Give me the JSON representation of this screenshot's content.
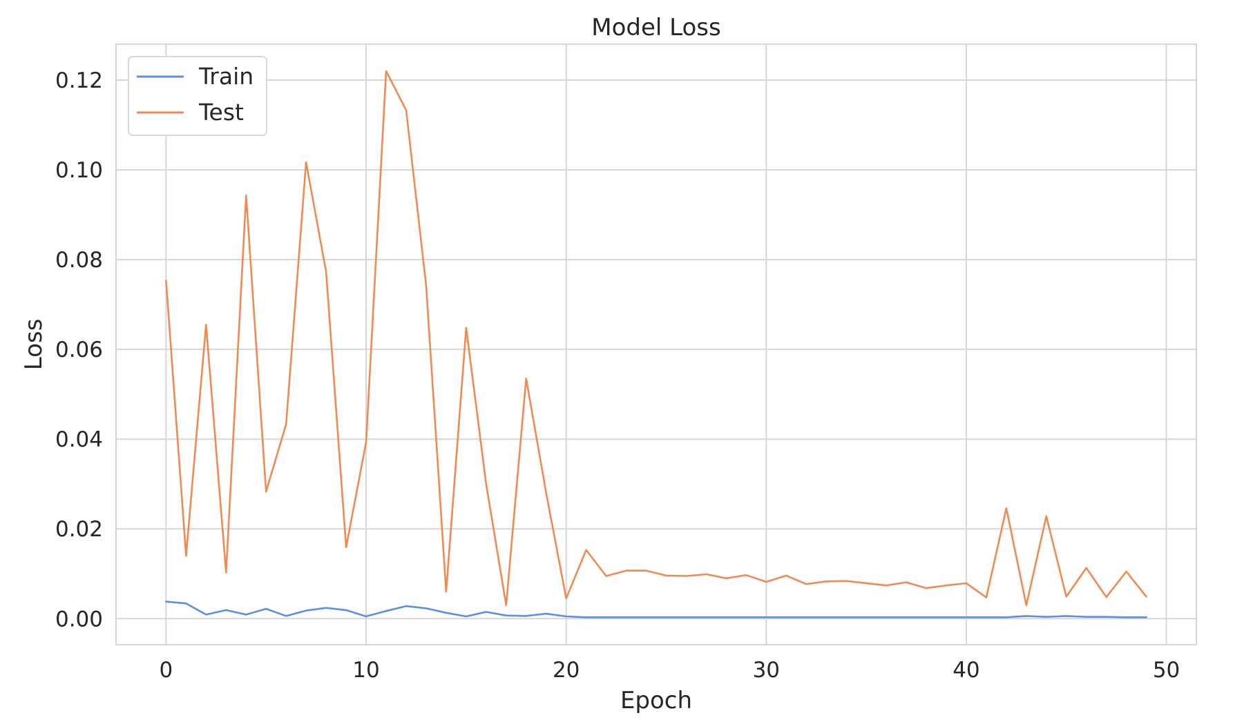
{
  "chart_data": {
    "type": "line",
    "title": "Model Loss",
    "xlabel": "Epoch",
    "ylabel": "Loss",
    "xlim": [
      -2.5,
      51.5
    ],
    "ylim": [
      -0.0058,
      0.128
    ],
    "xticks": [
      0,
      10,
      20,
      30,
      40,
      50
    ],
    "xtick_labels": [
      "0",
      "10",
      "20",
      "30",
      "40",
      "50"
    ],
    "yticks": [
      0.0,
      0.02,
      0.04,
      0.06,
      0.08,
      0.1,
      0.12
    ],
    "ytick_labels": [
      "0.00",
      "0.02",
      "0.04",
      "0.06",
      "0.08",
      "0.10",
      "0.12"
    ],
    "grid": true,
    "legend_position": "top-left",
    "x": [
      0,
      1,
      2,
      3,
      4,
      5,
      6,
      7,
      8,
      9,
      10,
      11,
      12,
      13,
      14,
      15,
      16,
      17,
      18,
      19,
      20,
      21,
      22,
      23,
      24,
      25,
      26,
      27,
      28,
      29,
      30,
      31,
      32,
      33,
      34,
      35,
      36,
      37,
      38,
      39,
      40,
      41,
      42,
      43,
      44,
      45,
      46,
      47,
      48,
      49
    ],
    "series": [
      {
        "name": "Train",
        "color": "#5b8ee5",
        "values": [
          0.0038,
          0.0034,
          0.0009,
          0.0019,
          0.0009,
          0.0022,
          0.0006,
          0.0018,
          0.0024,
          0.0019,
          0.0005,
          0.0017,
          0.0028,
          0.0023,
          0.0013,
          0.0005,
          0.0015,
          0.0007,
          0.0006,
          0.0011,
          0.0005,
          0.0003,
          0.0003,
          0.0003,
          0.0003,
          0.0003,
          0.0003,
          0.0003,
          0.0003,
          0.0003,
          0.0003,
          0.0003,
          0.0003,
          0.0003,
          0.0003,
          0.0003,
          0.0003,
          0.0003,
          0.0003,
          0.0003,
          0.0003,
          0.0003,
          0.0003,
          0.0006,
          0.0004,
          0.0006,
          0.0004,
          0.0004,
          0.0003,
          0.0003
        ]
      },
      {
        "name": "Test",
        "color": "#ef8a50",
        "values": [
          0.0753,
          0.014,
          0.0655,
          0.0103,
          0.0943,
          0.0283,
          0.0433,
          0.1017,
          0.0773,
          0.0159,
          0.0393,
          0.122,
          0.1133,
          0.0743,
          0.006,
          0.0648,
          0.03,
          0.003,
          0.0535,
          0.028,
          0.0045,
          0.0153,
          0.0095,
          0.0107,
          0.0107,
          0.0096,
          0.0095,
          0.0099,
          0.009,
          0.0097,
          0.0082,
          0.0096,
          0.0077,
          0.0083,
          0.0084,
          0.0079,
          0.0074,
          0.0081,
          0.0068,
          0.0074,
          0.0079,
          0.0047,
          0.0246,
          0.003,
          0.0228,
          0.0049,
          0.0113,
          0.0048,
          0.0105,
          0.0049
        ]
      }
    ]
  }
}
